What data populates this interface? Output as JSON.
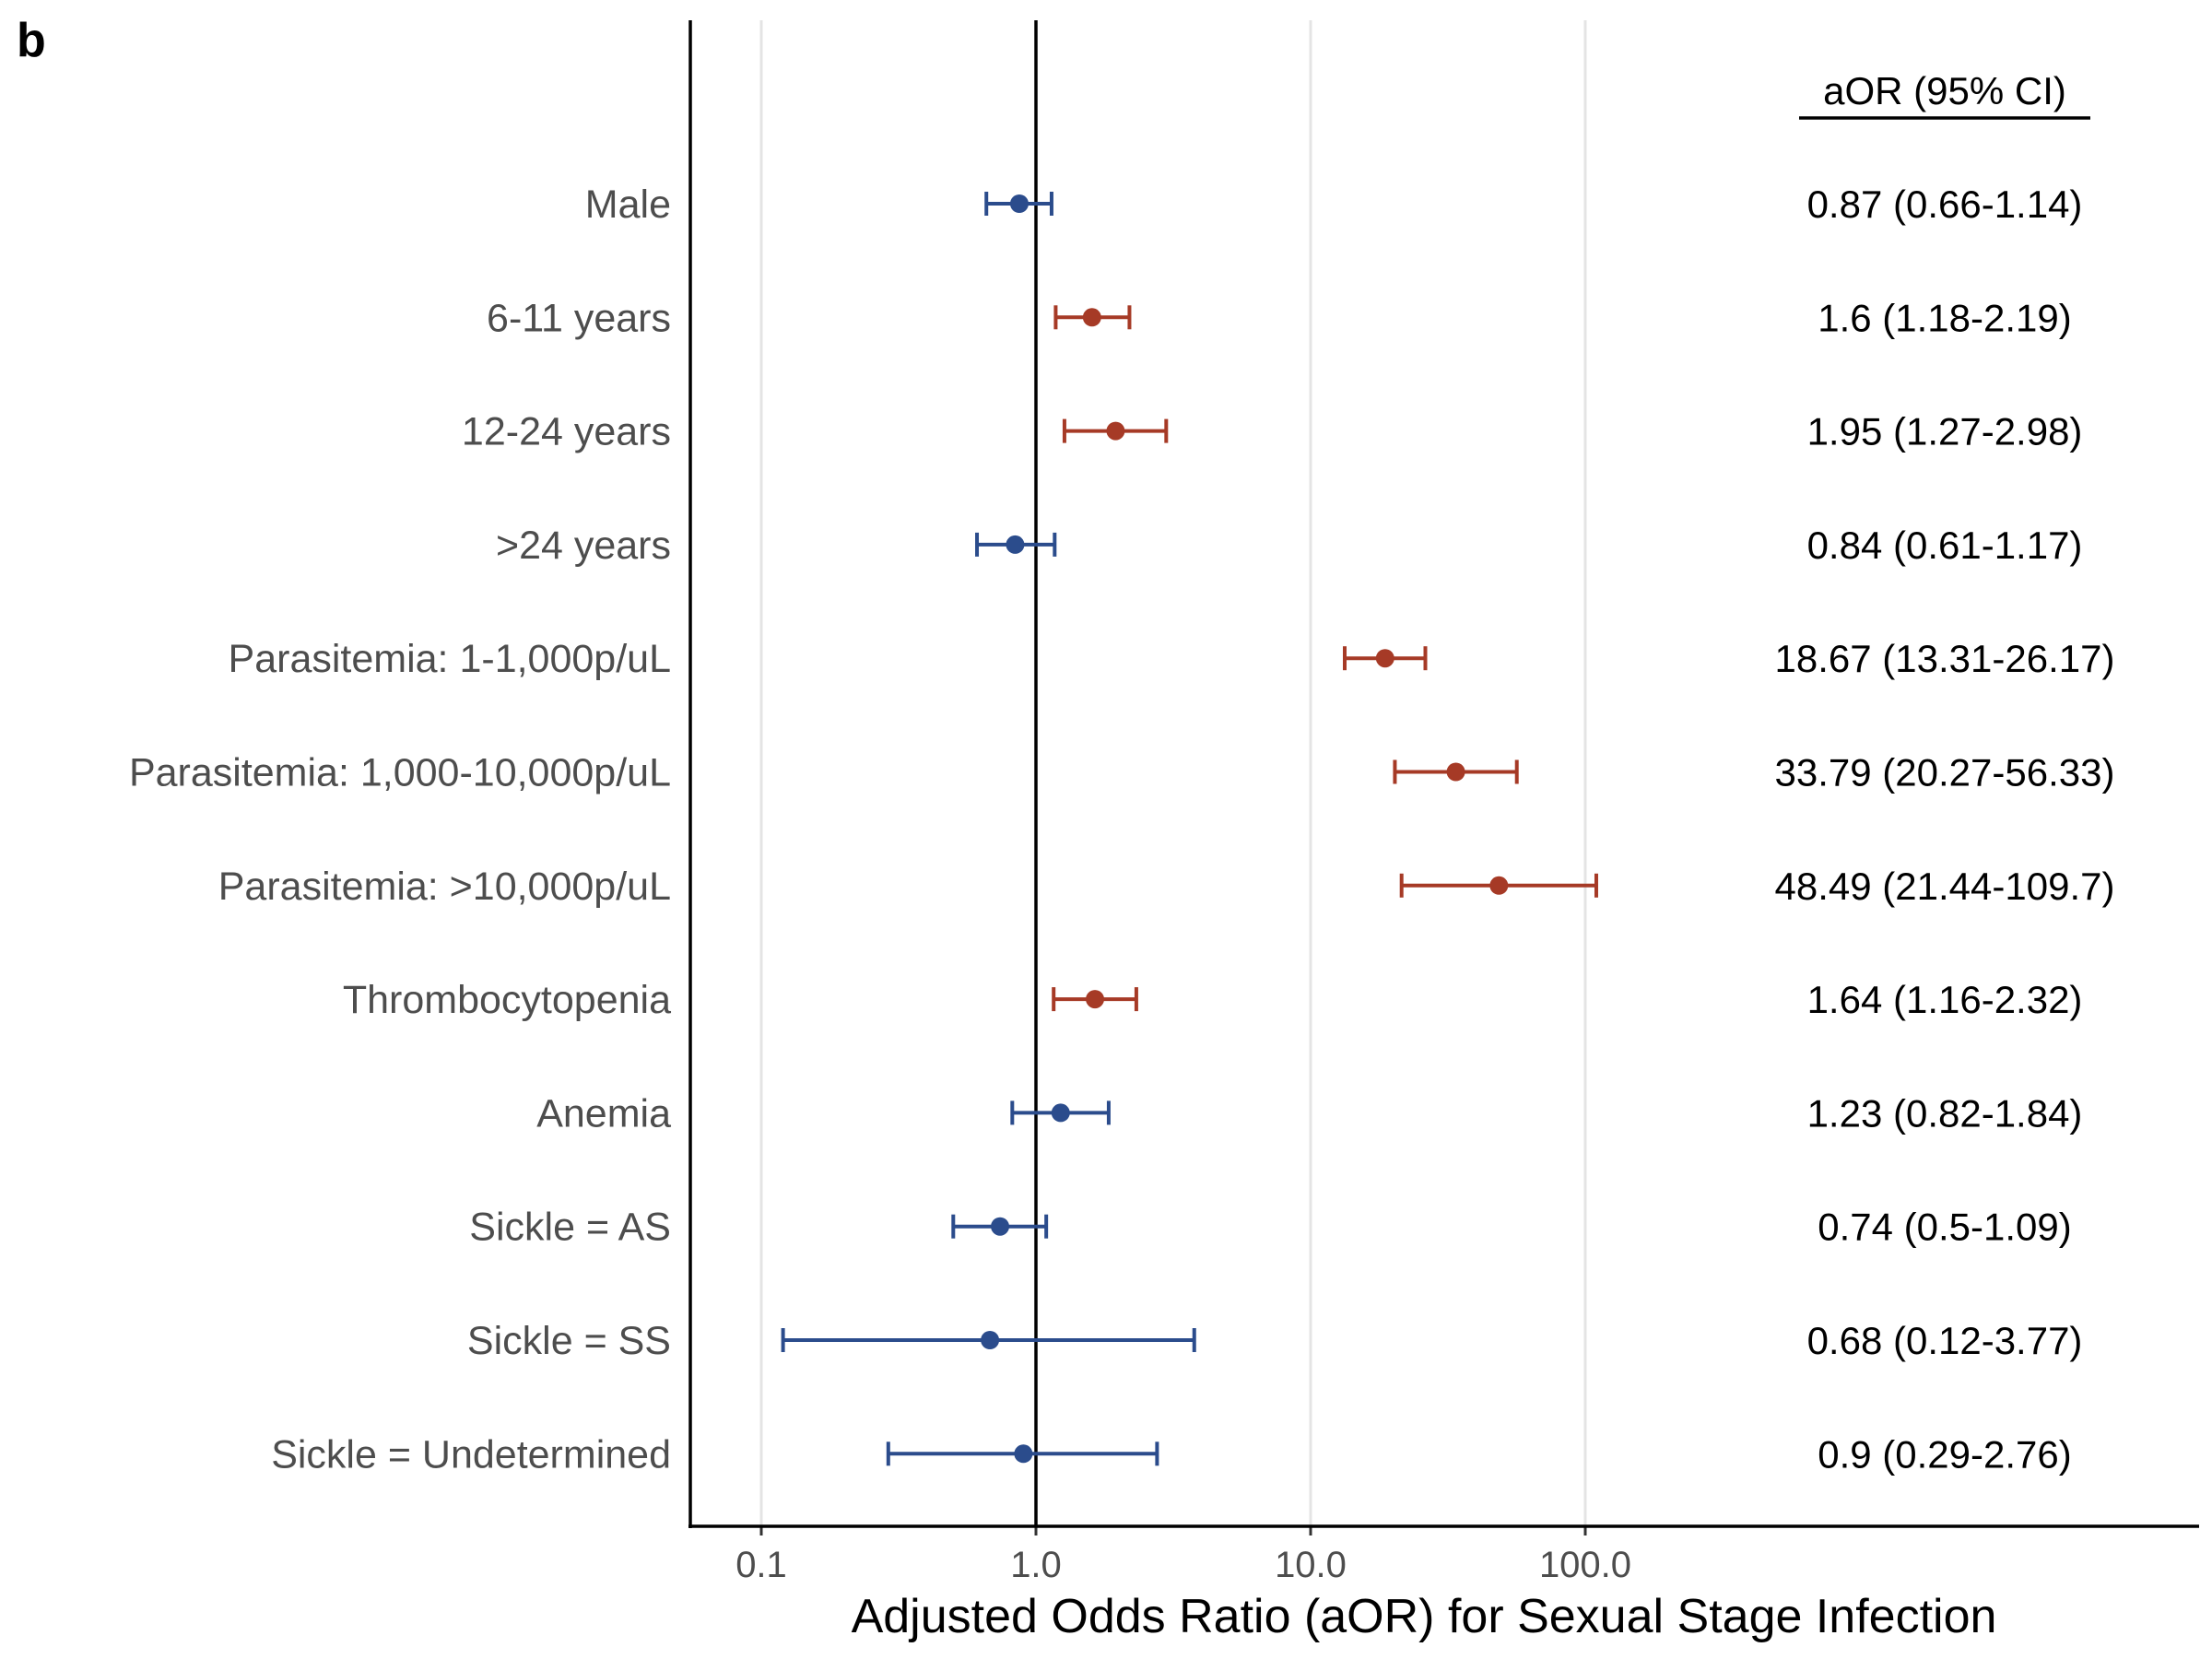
{
  "panel_label": "b",
  "chart_data": {
    "type": "forest",
    "title": "",
    "xlabel": "Adjusted Odds Ratio (aOR) for Sexual Stage Infection",
    "xscale": "log10",
    "xlim": [
      0.07,
      1000
    ],
    "xticks": [
      0.1,
      1.0,
      10.0,
      100.0
    ],
    "xtick_labels": [
      "0.1",
      "1.0",
      "10.0",
      "100.0"
    ],
    "reference_line": 1.0,
    "grid": "vertical major",
    "table_header": "aOR (95% CI)",
    "colors": {
      "increased": "#a63a26",
      "decreased": "#2b4c8c"
    },
    "rows": [
      {
        "label": "Male",
        "aor": 0.87,
        "lower": 0.66,
        "upper": 1.14,
        "text": "0.87 (0.66-1.14)"
      },
      {
        "label": "6-11 years",
        "aor": 1.6,
        "lower": 1.18,
        "upper": 2.19,
        "text": "1.6 (1.18-2.19)"
      },
      {
        "label": "12-24 years",
        "aor": 1.95,
        "lower": 1.27,
        "upper": 2.98,
        "text": "1.95 (1.27-2.98)"
      },
      {
        "label": ">24 years",
        "aor": 0.84,
        "lower": 0.61,
        "upper": 1.17,
        "text": "0.84 (0.61-1.17)"
      },
      {
        "label": "Parasitemia: 1-1,000p/uL",
        "aor": 18.67,
        "lower": 13.31,
        "upper": 26.17,
        "text": "18.67 (13.31-26.17)"
      },
      {
        "label": "Parasitemia: 1,000-10,000p/uL",
        "aor": 33.79,
        "lower": 20.27,
        "upper": 56.33,
        "text": "33.79 (20.27-56.33)"
      },
      {
        "label": "Parasitemia: >10,000p/uL",
        "aor": 48.49,
        "lower": 21.44,
        "upper": 109.7,
        "text": "48.49 (21.44-109.7)"
      },
      {
        "label": "Thrombocytopenia",
        "aor": 1.64,
        "lower": 1.16,
        "upper": 2.32,
        "text": "1.64 (1.16-2.32)"
      },
      {
        "label": "Anemia",
        "aor": 1.23,
        "lower": 0.82,
        "upper": 1.84,
        "text": "1.23 (0.82-1.84)"
      },
      {
        "label": "Sickle = AS",
        "aor": 0.74,
        "lower": 0.5,
        "upper": 1.09,
        "text": "0.74 (0.5-1.09)"
      },
      {
        "label": "Sickle = SS",
        "aor": 0.68,
        "lower": 0.12,
        "upper": 3.77,
        "text": "0.68 (0.12-3.77)"
      },
      {
        "label": "Sickle = Undetermined",
        "aor": 0.9,
        "lower": 0.29,
        "upper": 2.76,
        "text": "0.9 (0.29-2.76)"
      }
    ]
  }
}
